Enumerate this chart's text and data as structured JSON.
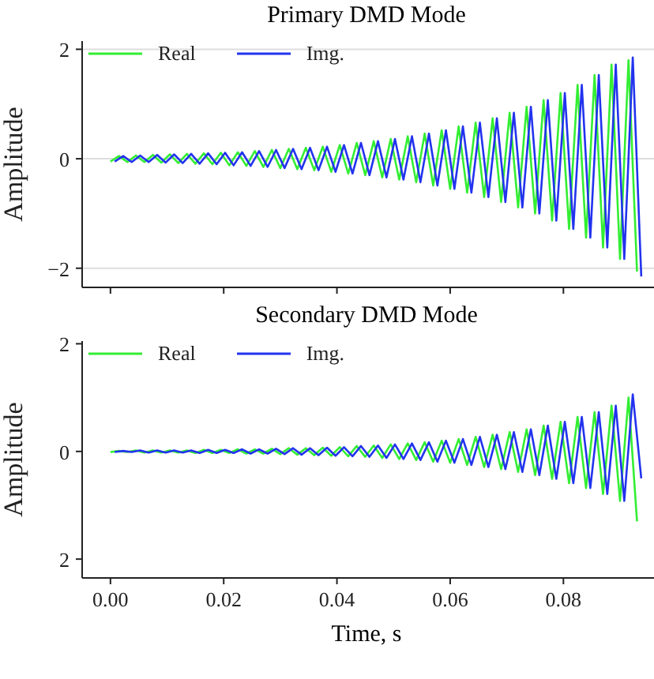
{
  "chart_data": [
    {
      "type": "line",
      "title": "Primary DMD Mode",
      "ylabel": "Amplitude",
      "xlim": [
        -0.005,
        0.096
      ],
      "xticks": [
        0,
        0.02,
        0.04,
        0.06,
        0.08
      ],
      "ylim": [
        -2.35,
        2.15
      ],
      "yticks": [
        {
          "value": -2,
          "label": "−2"
        },
        {
          "value": 0,
          "label": "0"
        },
        {
          "value": 2,
          "label": "2"
        }
      ],
      "tick_labels": "y",
      "grid": "y",
      "legend": "top left",
      "marker": "none",
      "line_style": "solid",
      "series": [
        {
          "name": "Real",
          "color": "#33ee33",
          "x": [
            0,
            0.0015,
            0.003,
            0.0045,
            0.006,
            0.0075,
            0.009,
            0.0105,
            0.012,
            0.0135,
            0.015,
            0.0165,
            0.018,
            0.0195,
            0.021,
            0.0225,
            0.024,
            0.0255,
            0.027,
            0.0285,
            0.03,
            0.0315,
            0.033,
            0.0345,
            0.036,
            0.0375,
            0.039,
            0.0405,
            0.042,
            0.0435,
            0.045,
            0.0465,
            0.048,
            0.0495,
            0.051,
            0.0525,
            0.054,
            0.0555,
            0.057,
            0.0585,
            0.06,
            0.0615,
            0.063,
            0.0645,
            0.066,
            0.0675,
            0.069,
            0.0705,
            0.072,
            0.0735,
            0.075,
            0.0765,
            0.078,
            0.0795,
            0.081,
            0.0825,
            0.084,
            0.0855,
            0.087,
            0.0885,
            0.09,
            0.0915,
            0.093
          ],
          "values": [
            -0.05,
            0.05,
            -0.06,
            0.06,
            -0.06,
            0.07,
            -0.07,
            0.08,
            -0.08,
            0.09,
            -0.09,
            0.1,
            -0.1,
            0.11,
            -0.12,
            0.12,
            -0.13,
            0.14,
            -0.15,
            0.16,
            -0.17,
            0.18,
            -0.19,
            0.2,
            -0.21,
            0.22,
            -0.24,
            0.25,
            -0.27,
            0.29,
            -0.3,
            0.32,
            -0.34,
            0.36,
            -0.38,
            0.41,
            -0.43,
            0.46,
            -0.49,
            0.52,
            -0.55,
            0.59,
            -0.62,
            0.66,
            -0.7,
            0.74,
            -0.79,
            0.84,
            -0.89,
            0.95,
            -1.0,
            1.07,
            -1.13,
            1.2,
            -1.28,
            1.35,
            -1.44,
            1.53,
            -1.62,
            1.72,
            -1.83,
            1.8,
            -2.06
          ]
        },
        {
          "name": "Img.",
          "color": "#2233ee",
          "x": [
            0.00075,
            0.00225,
            0.00375,
            0.00525,
            0.00675,
            0.00825,
            0.00975,
            0.01125,
            0.01275,
            0.01425,
            0.01575,
            0.01725,
            0.01875,
            0.02025,
            0.02175,
            0.02325,
            0.02475,
            0.02625,
            0.02775,
            0.02925,
            0.03075,
            0.03225,
            0.03375,
            0.03525,
            0.03675,
            0.03825,
            0.03975,
            0.04125,
            0.04275,
            0.04425,
            0.04575,
            0.04725,
            0.04875,
            0.05025,
            0.05175,
            0.05325,
            0.05475,
            0.05625,
            0.05775,
            0.05925,
            0.06075,
            0.06225,
            0.06375,
            0.06525,
            0.06675,
            0.06825,
            0.06975,
            0.07125,
            0.07275,
            0.07425,
            0.07575,
            0.07725,
            0.07875,
            0.08025,
            0.08175,
            0.08325,
            0.08475,
            0.08625,
            0.08775,
            0.08925,
            0.09075,
            0.09225,
            0.09375
          ],
          "values": [
            -0.05,
            0.05,
            -0.06,
            0.06,
            -0.06,
            0.07,
            -0.07,
            0.08,
            -0.08,
            0.09,
            -0.09,
            0.1,
            -0.1,
            0.11,
            -0.12,
            0.12,
            -0.13,
            0.14,
            -0.15,
            0.16,
            -0.17,
            0.18,
            -0.19,
            0.2,
            -0.21,
            0.22,
            -0.24,
            0.25,
            -0.27,
            0.29,
            -0.3,
            0.32,
            -0.34,
            0.36,
            -0.38,
            0.41,
            -0.43,
            0.46,
            -0.49,
            0.52,
            -0.55,
            0.59,
            -0.62,
            0.66,
            -0.7,
            0.74,
            -0.79,
            0.84,
            -0.89,
            0.95,
            -1.0,
            1.07,
            -1.13,
            1.2,
            -1.28,
            1.35,
            -1.44,
            1.53,
            -1.62,
            1.72,
            -1.83,
            1.85,
            -2.15
          ]
        }
      ]
    },
    {
      "type": "line",
      "title": "Secondary DMD Mode",
      "xlabel": "Time, s",
      "ylabel": "Amplitude",
      "xlim": [
        -0.005,
        0.096
      ],
      "xticks": [
        {
          "value": 0,
          "label": "0.00"
        },
        {
          "value": 0.02,
          "label": "0.02"
        },
        {
          "value": 0.04,
          "label": "0.04"
        },
        {
          "value": 0.06,
          "label": "0.06"
        },
        {
          "value": 0.08,
          "label": "0.08"
        }
      ],
      "ylim": [
        -2.35,
        2.05
      ],
      "yticks": [
        {
          "value": -2,
          "label": "2"
        },
        {
          "value": 0,
          "label": "0"
        },
        {
          "value": 2,
          "label": "2"
        }
      ],
      "legend": "top left",
      "marker": "none",
      "line_style": "solid",
      "series": [
        {
          "name": "Real",
          "color": "#33ee33",
          "x": [
            0,
            0.0015,
            0.003,
            0.0045,
            0.006,
            0.0075,
            0.009,
            0.0105,
            0.012,
            0.0135,
            0.015,
            0.0165,
            0.018,
            0.0195,
            0.021,
            0.0225,
            0.024,
            0.0255,
            0.027,
            0.0285,
            0.03,
            0.0315,
            0.033,
            0.0345,
            0.036,
            0.0375,
            0.039,
            0.0405,
            0.042,
            0.0435,
            0.045,
            0.0465,
            0.048,
            0.0495,
            0.051,
            0.0525,
            0.054,
            0.0555,
            0.057,
            0.0585,
            0.06,
            0.0615,
            0.063,
            0.0645,
            0.066,
            0.0675,
            0.069,
            0.0705,
            0.072,
            0.0735,
            0.075,
            0.0765,
            0.078,
            0.0795,
            0.081,
            0.0825,
            0.084,
            0.0855,
            0.087,
            0.0885,
            0.09,
            0.0915,
            0.093
          ],
          "values": [
            -0.01,
            0.01,
            -0.01,
            0.02,
            -0.02,
            0.02,
            -0.02,
            0.02,
            -0.02,
            0.02,
            -0.03,
            0.03,
            -0.03,
            0.03,
            -0.03,
            0.04,
            -0.04,
            0.04,
            -0.04,
            0.05,
            -0.05,
            0.06,
            -0.06,
            0.06,
            -0.07,
            0.07,
            -0.08,
            0.08,
            -0.09,
            0.1,
            -0.1,
            0.11,
            -0.12,
            0.13,
            -0.14,
            0.15,
            -0.16,
            0.17,
            -0.19,
            0.2,
            -0.21,
            0.23,
            -0.25,
            0.27,
            -0.29,
            0.31,
            -0.33,
            0.36,
            -0.38,
            0.41,
            -0.44,
            0.48,
            -0.51,
            0.55,
            -0.59,
            0.64,
            -0.68,
            0.73,
            -0.79,
            0.85,
            -0.92,
            1.0,
            -1.3
          ]
        },
        {
          "name": "Img.",
          "color": "#2233ee",
          "x": [
            0.00075,
            0.00225,
            0.00375,
            0.00525,
            0.00675,
            0.00825,
            0.00975,
            0.01125,
            0.01275,
            0.01425,
            0.01575,
            0.01725,
            0.01875,
            0.02025,
            0.02175,
            0.02325,
            0.02475,
            0.02625,
            0.02775,
            0.02925,
            0.03075,
            0.03225,
            0.03375,
            0.03525,
            0.03675,
            0.03825,
            0.03975,
            0.04125,
            0.04275,
            0.04425,
            0.04575,
            0.04725,
            0.04875,
            0.05025,
            0.05175,
            0.05325,
            0.05475,
            0.05625,
            0.05775,
            0.05925,
            0.06075,
            0.06225,
            0.06375,
            0.06525,
            0.06675,
            0.06825,
            0.06975,
            0.07125,
            0.07275,
            0.07425,
            0.07575,
            0.07725,
            0.07875,
            0.08025,
            0.08175,
            0.08325,
            0.08475,
            0.08625,
            0.08775,
            0.08925,
            0.09075,
            0.09225,
            0.09375
          ],
          "values": [
            -0.01,
            0.01,
            -0.01,
            0.02,
            -0.02,
            0.02,
            -0.02,
            0.02,
            -0.02,
            0.02,
            -0.03,
            0.03,
            -0.03,
            0.03,
            -0.03,
            0.04,
            -0.04,
            0.04,
            -0.04,
            0.05,
            -0.05,
            0.06,
            -0.06,
            0.06,
            -0.07,
            0.07,
            -0.08,
            0.08,
            -0.09,
            0.1,
            -0.1,
            0.11,
            -0.12,
            0.13,
            -0.14,
            0.15,
            -0.16,
            0.17,
            -0.19,
            0.2,
            -0.21,
            0.23,
            -0.25,
            0.27,
            -0.29,
            0.31,
            -0.33,
            0.36,
            -0.38,
            0.41,
            -0.44,
            0.48,
            -0.51,
            0.55,
            -0.59,
            0.64,
            -0.68,
            0.73,
            -0.79,
            0.85,
            -0.92,
            1.06,
            -0.5
          ]
        }
      ]
    }
  ]
}
